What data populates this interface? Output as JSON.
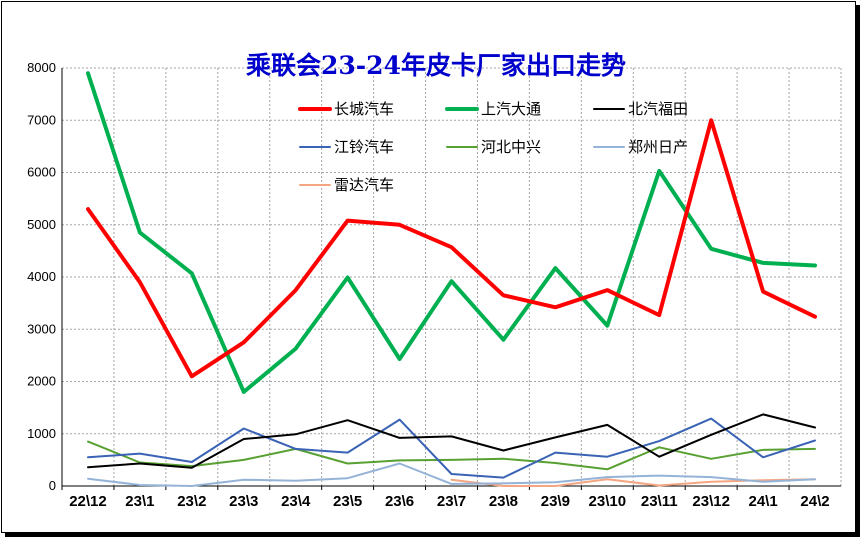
{
  "chart_data": {
    "type": "line",
    "title": "乘联会23-24年皮卡厂家出口走势",
    "categories": [
      "22\\12",
      "23\\1",
      "23\\2",
      "23\\3",
      "23\\4",
      "23\\5",
      "23\\6",
      "23\\7",
      "23\\8",
      "23\\9",
      "23\\10",
      "23\\11",
      "23\\12",
      "24\\1",
      "24\\2"
    ],
    "ylim": [
      0,
      8000
    ],
    "yticks": [
      0,
      1000,
      2000,
      3000,
      4000,
      5000,
      6000,
      7000,
      8000
    ],
    "grid": true,
    "legend_position": "top",
    "series": [
      {
        "name": "长城汽车",
        "color": "#ff0000",
        "values": [
          5300,
          3900,
          2100,
          2750,
          3750,
          5080,
          5000,
          4570,
          3650,
          3420,
          3750,
          3270,
          7000,
          3720,
          3240
        ]
      },
      {
        "name": "上汽大通",
        "color": "#00b050",
        "values": [
          7900,
          4850,
          4070,
          1800,
          2630,
          3990,
          2430,
          3920,
          2800,
          4170,
          3070,
          6030,
          4540,
          4270,
          4220
        ]
      },
      {
        "name": "北汽福田",
        "color": "#000000",
        "values": [
          360,
          430,
          350,
          900,
          990,
          1260,
          920,
          950,
          680,
          930,
          1170,
          560,
          980,
          1370,
          1120
        ]
      },
      {
        "name": "江铃汽车",
        "color": "#3a63b5",
        "values": [
          550,
          620,
          460,
          1100,
          710,
          640,
          1270,
          230,
          160,
          640,
          560,
          860,
          1290,
          550,
          870
        ]
      },
      {
        "name": "河北中兴",
        "color": "#58a032",
        "values": [
          850,
          450,
          380,
          500,
          710,
          430,
          490,
          500,
          520,
          440,
          320,
          740,
          520,
          690,
          710
        ]
      },
      {
        "name": "郑州日产",
        "color": "#95b3d7",
        "values": [
          140,
          20,
          0,
          120,
          100,
          150,
          430,
          40,
          50,
          70,
          170,
          200,
          170,
          80,
          130
        ]
      },
      {
        "name": "雷达汽车",
        "color": "#f4a582",
        "values": [
          null,
          null,
          null,
          null,
          null,
          null,
          null,
          120,
          0,
          0,
          130,
          10,
          80,
          110,
          130
        ]
      }
    ]
  }
}
